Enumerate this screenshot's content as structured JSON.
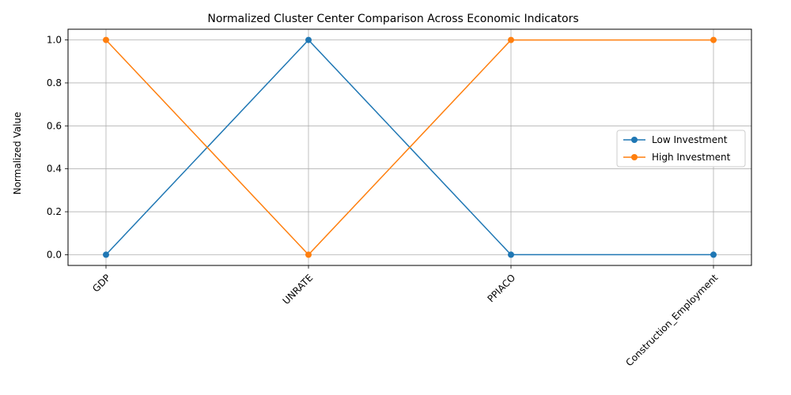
{
  "chart_data": {
    "type": "line",
    "title": "Normalized Cluster Center Comparison Across Economic Indicators",
    "xlabel": "",
    "ylabel": "Normalized Value",
    "categories": [
      "GDP",
      "UNRATE",
      "PPIACO",
      "Construction_Employment"
    ],
    "series": [
      {
        "name": "Low Investment",
        "values": [
          0,
          1,
          0,
          0
        ],
        "color": "#1f77b4"
      },
      {
        "name": "High Investment",
        "values": [
          1,
          0,
          1,
          1
        ],
        "color": "#ff7f0e"
      }
    ],
    "ylim": [
      -0.05,
      1.05
    ],
    "yticks": [
      "0.0",
      "0.2",
      "0.4",
      "0.6",
      "0.8",
      "1.0"
    ],
    "grid": true,
    "legend_position": "center-right",
    "marker": "circle"
  }
}
